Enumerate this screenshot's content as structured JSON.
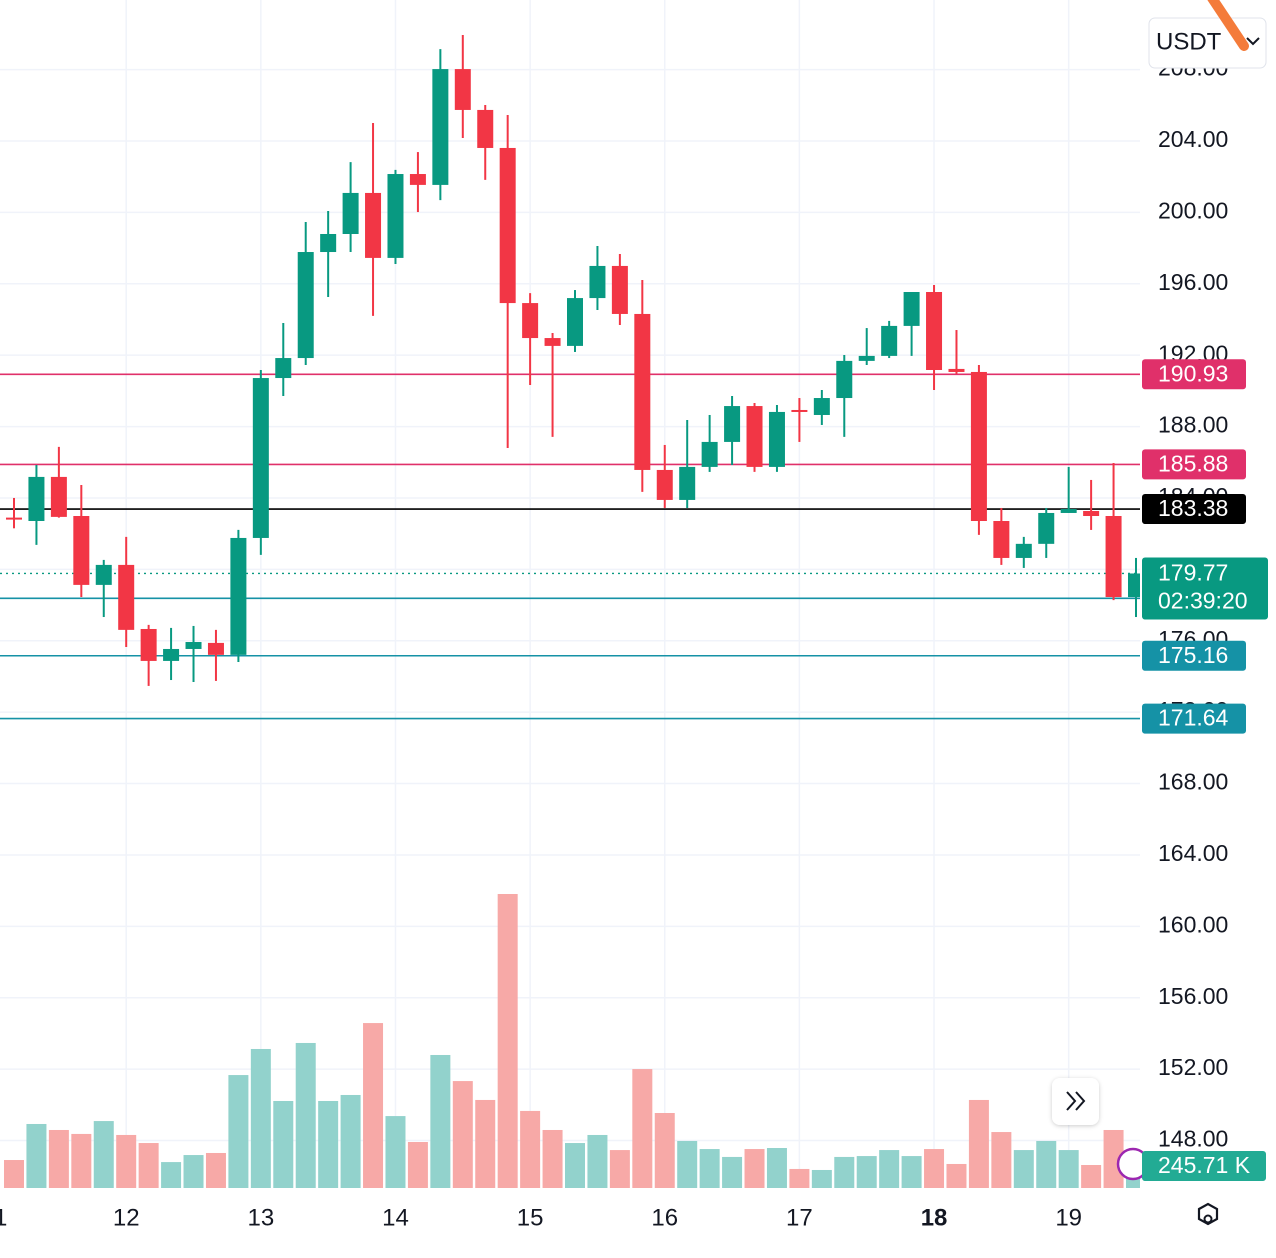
{
  "chart_data": {
    "type": "candlestick",
    "currency": "USDT",
    "categories": [
      null,
      null,
      null,
      null,
      null,
      "12",
      null,
      null,
      null,
      null,
      null,
      "13",
      null,
      null,
      null,
      null,
      null,
      "14",
      null,
      null,
      null,
      null,
      null,
      "15",
      null,
      null,
      null,
      null,
      null,
      "16",
      null,
      null,
      null,
      null,
      null,
      "17",
      null,
      null,
      null,
      null,
      null,
      "18",
      null,
      null,
      null,
      null,
      null,
      "19",
      null,
      null,
      null
    ],
    "bold_index": 41,
    "cut_label": "1",
    "open": [
      182.9,
      182.71,
      185.18,
      182.99,
      179.13,
      180.25,
      176.66,
      174.87,
      175.54,
      175.88,
      175.21,
      181.76,
      190.72,
      191.84,
      197.78,
      198.79,
      201.09,
      197.45,
      202.15,
      201.54,
      208.03,
      205.74,
      203.61,
      194.92,
      192.96,
      192.52,
      195.2,
      197.0,
      194.31,
      185.57,
      183.89,
      185.74,
      187.14,
      189.15,
      185.74,
      188.93,
      188.65,
      189.6,
      191.68,
      191.96,
      193.64,
      195.54,
      191.23,
      191.06,
      182.71,
      180.64,
      181.43,
      183.16,
      183.27,
      182.99,
      178.45
    ],
    "high": [
      184.0,
      185.85,
      186.86,
      184.73,
      180.53,
      181.82,
      176.89,
      176.72,
      176.83,
      176.61,
      182.21,
      191.17,
      193.8,
      199.46,
      200.08,
      202.82,
      205.01,
      202.38,
      203.38,
      209.15,
      209.94,
      206.02,
      205.46,
      195.48,
      193.24,
      195.65,
      198.12,
      197.67,
      196.21,
      186.97,
      188.37,
      188.65,
      189.71,
      189.32,
      189.21,
      189.6,
      190.05,
      192.01,
      193.52,
      193.92,
      195.54,
      195.93,
      193.41,
      191.45,
      183.44,
      181.82,
      183.44,
      185.74,
      185.01,
      185.96,
      180.64
    ],
    "low": [
      182.3,
      181.37,
      182.9,
      178.45,
      177.33,
      175.65,
      173.47,
      173.8,
      173.69,
      173.75,
      174.81,
      180.81,
      189.71,
      191.45,
      195.26,
      197.78,
      194.2,
      197.11,
      200.02,
      200.69,
      204.17,
      201.82,
      186.8,
      190.33,
      187.42,
      192.18,
      194.53,
      193.69,
      184.34,
      183.44,
      183.44,
      185.46,
      185.85,
      185.46,
      185.46,
      187.14,
      188.09,
      187.42,
      191.45,
      191.84,
      191.96,
      190.05,
      190.95,
      181.93,
      180.25,
      180.08,
      180.64,
      183.16,
      182.21,
      178.28,
      177.33
    ],
    "close": [
      182.8,
      185.18,
      182.94,
      179.13,
      180.25,
      176.61,
      174.87,
      175.54,
      175.93,
      175.21,
      181.76,
      190.72,
      191.84,
      197.78,
      198.79,
      201.09,
      197.45,
      202.15,
      201.54,
      208.03,
      205.74,
      203.61,
      194.92,
      192.96,
      192.52,
      195.2,
      197.0,
      194.31,
      185.57,
      183.89,
      185.74,
      187.14,
      189.15,
      185.74,
      188.82,
      188.82,
      189.6,
      191.68,
      191.96,
      193.64,
      195.54,
      191.17,
      191.06,
      182.71,
      180.64,
      181.43,
      183.16,
      183.38,
      182.99,
      178.45,
      179.77
    ],
    "volume": [
      191000,
      437000,
      396000,
      369000,
      457000,
      362000,
      307000,
      177000,
      225000,
      239000,
      771000,
      949000,
      594000,
      990000,
      594000,
      635000,
      1126000,
      491000,
      314000,
      908000,
      730000,
      601000,
      2007000,
      526000,
      396000,
      307000,
      362000,
      259000,
      812000,
      512000,
      321000,
      266000,
      212000,
      266000,
      273000,
      130000,
      123000,
      212000,
      218000,
      259000,
      218000,
      266000,
      164000,
      601000,
      382000,
      259000,
      321000,
      259000,
      157000,
      396000,
      245710
    ],
    "last_volume_label": "245.71 K",
    "countdown": "02:39:20",
    "up_color": "#089981",
    "down_color": "#f23645",
    "volume_up_color": "#92d2cc",
    "volume_down_color": "#f7a9a7",
    "current_price_color": "#089981",
    "price_lines": [
      {
        "value": 190.93,
        "color": "#e0306a"
      },
      {
        "value": 185.88,
        "color": "#e0306a"
      },
      {
        "value": 183.38,
        "color": "#000000"
      },
      {
        "value": 178.38,
        "color": "#1592a6"
      },
      {
        "value": 175.16,
        "color": "#1592a6"
      },
      {
        "value": 171.64,
        "color": "#1592a6"
      }
    ],
    "ylim": [
      145.34,
      211.9
    ],
    "yticks": [
      {
        "value": 148,
        "label": "148.00"
      },
      {
        "value": 152,
        "label": "152.00"
      },
      {
        "value": 156,
        "label": "156.00"
      },
      {
        "value": 160,
        "label": "160.00"
      },
      {
        "value": 164,
        "label": "164.00"
      },
      {
        "value": 168,
        "label": "168.00"
      },
      {
        "value": 172,
        "label": "172.00"
      },
      {
        "value": 176,
        "label": "176.00"
      },
      {
        "value": 180,
        "label": "180.00"
      },
      {
        "value": 184,
        "label": "184.00"
      },
      {
        "value": 188,
        "label": "188.00"
      },
      {
        "value": 192,
        "label": "192.00"
      },
      {
        "value": 196,
        "label": "196.00"
      },
      {
        "value": 200,
        "label": "200.00"
      },
      {
        "value": 204,
        "label": "204.00"
      },
      {
        "value": 208,
        "label": "208.00"
      }
    ],
    "grid": true
  }
}
